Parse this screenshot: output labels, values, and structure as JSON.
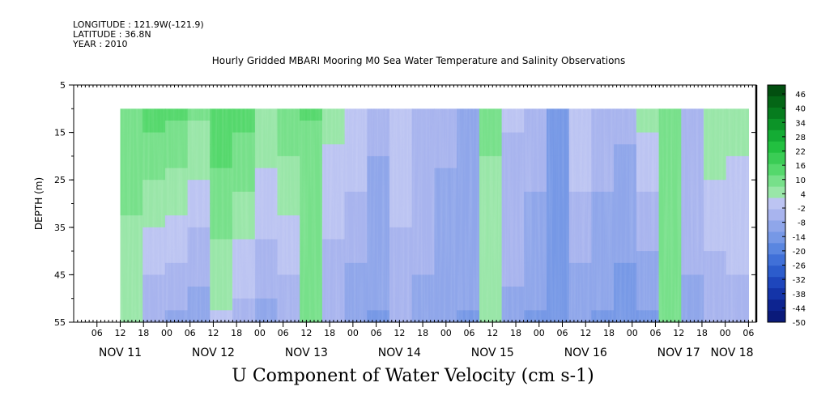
{
  "header": {
    "longitude": "LONGITUDE : 121.9W(-121.9)",
    "latitude": "LATITUDE : 36.8N",
    "year": "YEAR : 2010"
  },
  "chart_data": {
    "type": "heatmap",
    "title": "Hourly Gridded MBARI Mooring M0 Sea Water Temperature and Salinity Observations",
    "xlabel": "U Component of Water Velocity (cm s-1)",
    "ylabel": "DEPTH (m)",
    "y_ticks": [
      5,
      15,
      25,
      35,
      45,
      55
    ],
    "ylim": [
      5,
      55
    ],
    "y_inverted": true,
    "data_depth_range": [
      10,
      55
    ],
    "x_hour_ticks": [
      "06",
      "12",
      "18",
      "00",
      "06",
      "12",
      "18",
      "00",
      "06",
      "12",
      "18",
      "00",
      "06",
      "12",
      "18",
      "00",
      "06",
      "12",
      "18",
      "00",
      "06",
      "12",
      "18",
      "00",
      "06",
      "12",
      "18",
      "00",
      "06"
    ],
    "x_day_labels": [
      "NOV 11",
      "NOV 12",
      "NOV 13",
      "NOV 14",
      "NOV 15",
      "NOV 16",
      "NOV 17",
      "NOV 18"
    ],
    "x_range": [
      "2010-11-11 00:00",
      "2010-11-18 08:00"
    ],
    "data_time_range": [
      "2010-11-11 12:00",
      "2010-11-18 06:00"
    ],
    "colorbar": {
      "labels": [
        "46",
        "40",
        "34",
        "28",
        "22",
        "16",
        "10",
        "4",
        "-2",
        "-8",
        "-14",
        "-20",
        "-26",
        "-32",
        "-38",
        "-44",
        "-50"
      ],
      "range": [
        -50,
        50
      ],
      "colors": [
        "#0a1a7a",
        "#0d2490",
        "#1434a8",
        "#1e46bc",
        "#2c5ccc",
        "#4070d8",
        "#5a86e0",
        "#7698e6",
        "#8fa6ea",
        "#a8b4ee",
        "#bcc4f2",
        "#99e6a8",
        "#77e08a",
        "#55d86c",
        "#3acc55",
        "#22c040",
        "#14ac34",
        "#0c9428",
        "#067c1e",
        "#046616",
        "#024f10"
      ]
    },
    "grid": false,
    "value_grid_note": "dominant U velocity (cm s-1) by time block (approx.)",
    "columns": [
      {
        "t": "11 12:00",
        "surface": 10,
        "bottom": 4
      },
      {
        "t": "11 18:00",
        "surface": 14,
        "bottom": -6
      },
      {
        "t": "12 00:00",
        "surface": 12,
        "bottom": -8
      },
      {
        "t": "12 06:00",
        "surface": 8,
        "bottom": -10
      },
      {
        "t": "12 12:00",
        "surface": 16,
        "bottom": 2
      },
      {
        "t": "12 18:00",
        "surface": 14,
        "bottom": -4
      },
      {
        "t": "13 00:00",
        "surface": 6,
        "bottom": -8
      },
      {
        "t": "13 06:00",
        "surface": 10,
        "bottom": -6
      },
      {
        "t": "13 12:00",
        "surface": 12,
        "bottom": 8
      },
      {
        "t": "13 18:00",
        "surface": 4,
        "bottom": -6
      },
      {
        "t": "14 00:00",
        "surface": 2,
        "bottom": -10
      },
      {
        "t": "14 06:00",
        "surface": -6,
        "bottom": -12
      },
      {
        "t": "14 12:00",
        "surface": 2,
        "bottom": -6
      },
      {
        "t": "14 18:00",
        "surface": -4,
        "bottom": -8
      },
      {
        "t": "15 00:00",
        "surface": -6,
        "bottom": -10
      },
      {
        "t": "15 06:00",
        "surface": -10,
        "bottom": -12
      },
      {
        "t": "15 12:00",
        "surface": 8,
        "bottom": 4
      },
      {
        "t": "15 18:00",
        "surface": -2,
        "bottom": -8
      },
      {
        "t": "16 00:00",
        "surface": -4,
        "bottom": -12
      },
      {
        "t": "16 06:00",
        "surface": -12,
        "bottom": -14
      },
      {
        "t": "16 12:00",
        "surface": 2,
        "bottom": -10
      },
      {
        "t": "16 18:00",
        "surface": -4,
        "bottom": -12
      },
      {
        "t": "17 00:00",
        "surface": -6,
        "bottom": -14
      },
      {
        "t": "17 06:00",
        "surface": 4,
        "bottom": -12
      },
      {
        "t": "17 12:00",
        "surface": 10,
        "bottom": 10
      },
      {
        "t": "17 18:00",
        "surface": -4,
        "bottom": -8
      },
      {
        "t": "18 00:00",
        "surface": 6,
        "bottom": -6
      },
      {
        "t": "18 06:00",
        "surface": 4,
        "bottom": -4
      }
    ]
  }
}
